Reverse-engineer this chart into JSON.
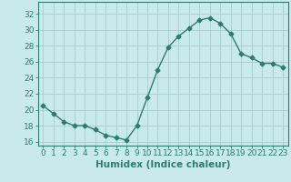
{
  "x": [
    0,
    1,
    2,
    3,
    4,
    5,
    6,
    7,
    8,
    9,
    10,
    11,
    12,
    13,
    14,
    15,
    16,
    17,
    18,
    19,
    20,
    21,
    22,
    23
  ],
  "y": [
    20.5,
    19.5,
    18.5,
    18.0,
    18.0,
    17.5,
    16.8,
    16.5,
    16.2,
    18.0,
    21.5,
    25.0,
    27.8,
    29.2,
    30.2,
    31.2,
    31.5,
    30.8,
    29.5,
    27.0,
    26.5,
    25.8,
    25.8,
    25.3
  ],
  "line_color": "#2e7d6e",
  "marker": "D",
  "marker_size": 2.5,
  "bg_color": "#c8eaea",
  "grid_color": "#aacccc",
  "xlabel": "Humidex (Indice chaleur)",
  "ylim": [
    15.5,
    33.5
  ],
  "xlim": [
    -0.5,
    23.5
  ],
  "yticks": [
    16,
    18,
    20,
    22,
    24,
    26,
    28,
    30,
    32
  ],
  "xticks": [
    0,
    1,
    2,
    3,
    4,
    5,
    6,
    7,
    8,
    9,
    10,
    11,
    12,
    13,
    14,
    15,
    16,
    17,
    18,
    19,
    20,
    21,
    22,
    23
  ],
  "xtick_labels": [
    "0",
    "1",
    "2",
    "3",
    "4",
    "5",
    "6",
    "7",
    "8",
    "9",
    "10",
    "11",
    "12",
    "13",
    "14",
    "15",
    "16",
    "17",
    "18",
    "19",
    "20",
    "21",
    "22",
    "23"
  ],
  "axis_color": "#2e7d6e",
  "tick_color": "#2e7d6e",
  "label_fontsize": 7.5,
  "tick_fontsize": 6.5
}
